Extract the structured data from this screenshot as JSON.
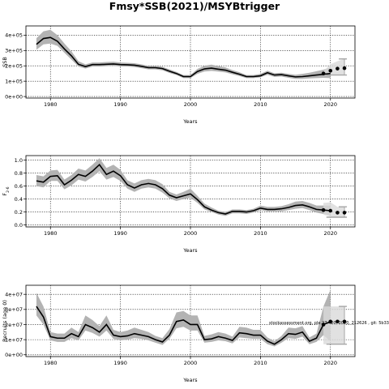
{
  "figure": {
    "title": "Fmsy*SSB(2021)/MSYBtrigger",
    "annotation": "stockassessment.org, ple.27.420, 2020, 212626 , git: 5b33"
  },
  "colors": {
    "band": "#b3b3b3",
    "line": "#000000",
    "point": "#000000",
    "proj_band": "#d9d9d9",
    "proj_line": "#a6a6a6"
  },
  "chart_data": [
    {
      "type": "line",
      "title": "",
      "xlabel": "Years",
      "ylabel": "SSB",
      "xlim": [
        1976.5,
        2023.5
      ],
      "ylim": [
        -10000,
        460000
      ],
      "xticks": [
        1980,
        1990,
        2000,
        2010,
        2020
      ],
      "yticks": [
        0,
        100000,
        200000,
        300000,
        400000
      ],
      "yticklabels": [
        "0e+00",
        "1e+05",
        "2e+05",
        "3e+05",
        "4e+05"
      ],
      "grid": true,
      "series": [
        {
          "x": [
            1978,
            1979,
            1980,
            1981,
            1982,
            1983,
            1984,
            1985,
            1986,
            1987,
            1988,
            1989,
            1990,
            1991,
            1992,
            1993,
            1994,
            1995,
            1996,
            1997,
            1998,
            1999,
            2000,
            2001,
            2002,
            2003,
            2004,
            2005,
            2006,
            2007,
            2008,
            2009,
            2010,
            2011,
            2012,
            2013,
            2014,
            2015,
            2016,
            2017,
            2018,
            2019,
            2020
          ],
          "y": [
            340000,
            378000,
            385000,
            360000,
            310000,
            265000,
            210000,
            195000,
            208000,
            208000,
            210000,
            212000,
            208000,
            207000,
            204000,
            197000,
            188000,
            188000,
            182000,
            165000,
            150000,
            130000,
            130000,
            163000,
            180000,
            185000,
            178000,
            172000,
            158000,
            145000,
            130000,
            130000,
            135000,
            155000,
            140000,
            143000,
            135000,
            128000,
            130000,
            135000,
            140000,
            145000,
            150000
          ],
          "lo": [
            305000,
            340000,
            345000,
            330000,
            285000,
            240000,
            195000,
            182000,
            195000,
            195000,
            198000,
            200000,
            196000,
            195000,
            192000,
            185000,
            177000,
            177000,
            171000,
            154000,
            140000,
            120000,
            120000,
            148000,
            163000,
            167000,
            162000,
            157000,
            145000,
            133000,
            120000,
            120000,
            125000,
            142000,
            128000,
            130000,
            122000,
            115000,
            115000,
            118000,
            120000,
            122000,
            120000
          ],
          "hi": [
            380000,
            425000,
            435000,
            400000,
            345000,
            295000,
            230000,
            210000,
            222000,
            222000,
            225000,
            227000,
            222000,
            220000,
            217000,
            210000,
            200000,
            200000,
            194000,
            177000,
            160000,
            140000,
            140000,
            180000,
            200000,
            208000,
            198000,
            190000,
            172000,
            158000,
            140000,
            140000,
            148000,
            168000,
            152000,
            155000,
            148000,
            142000,
            148000,
            155000,
            165000,
            175000,
            190000
          ]
        }
      ],
      "points": {
        "x": [
          2019,
          2020,
          2021,
          2022
        ],
        "y": [
          150000,
          168000,
          182000,
          185000
        ]
      },
      "projection": {
        "x": [
          2019,
          2020,
          2021,
          2022
        ],
        "lo": [
          135000,
          140000,
          140000,
          140000
        ],
        "hi": [
          165000,
          210000,
          230000,
          245000
        ]
      }
    },
    {
      "type": "line",
      "title": "",
      "xlabel": "Years",
      "ylabel": "F2-6",
      "ylabel_main": "F",
      "ylabel_sub": "2-6",
      "xlim": [
        1976.5,
        2023.5
      ],
      "ylim": [
        -0.03,
        1.07
      ],
      "xticks": [
        1980,
        1990,
        2000,
        2010,
        2020
      ],
      "yticks": [
        0,
        0.2,
        0.4,
        0.6,
        0.8,
        1.0
      ],
      "yticklabels": [
        "0.0",
        "0.2",
        "0.4",
        "0.6",
        "0.8",
        "1.0"
      ],
      "grid": true,
      "series": [
        {
          "x": [
            1978,
            1979,
            1980,
            1981,
            1982,
            1983,
            1984,
            1985,
            1986,
            1987,
            1988,
            1989,
            1990,
            1991,
            1992,
            1993,
            1994,
            1995,
            1996,
            1997,
            1998,
            1999,
            2000,
            2001,
            2002,
            2003,
            2004,
            2005,
            2006,
            2007,
            2008,
            2009,
            2010,
            2011,
            2012,
            2013,
            2014,
            2015,
            2016,
            2017,
            2018,
            2019,
            2020
          ],
          "y": [
            0.68,
            0.66,
            0.75,
            0.76,
            0.62,
            0.69,
            0.78,
            0.75,
            0.83,
            0.93,
            0.78,
            0.83,
            0.76,
            0.62,
            0.57,
            0.62,
            0.64,
            0.62,
            0.56,
            0.46,
            0.42,
            0.45,
            0.48,
            0.39,
            0.28,
            0.23,
            0.19,
            0.17,
            0.21,
            0.21,
            0.2,
            0.22,
            0.26,
            0.24,
            0.24,
            0.25,
            0.27,
            0.3,
            0.31,
            0.28,
            0.24,
            0.23,
            0.22
          ],
          "lo": [
            0.6,
            0.58,
            0.68,
            0.68,
            0.55,
            0.61,
            0.7,
            0.67,
            0.74,
            0.83,
            0.7,
            0.74,
            0.68,
            0.56,
            0.51,
            0.56,
            0.58,
            0.56,
            0.5,
            0.41,
            0.37,
            0.4,
            0.42,
            0.34,
            0.24,
            0.2,
            0.16,
            0.14,
            0.18,
            0.18,
            0.17,
            0.19,
            0.23,
            0.21,
            0.21,
            0.21,
            0.23,
            0.25,
            0.26,
            0.23,
            0.19,
            0.17,
            0.15
          ],
          "hi": [
            0.77,
            0.75,
            0.84,
            0.85,
            0.7,
            0.77,
            0.87,
            0.84,
            0.93,
            1.03,
            0.88,
            0.93,
            0.85,
            0.69,
            0.64,
            0.69,
            0.71,
            0.69,
            0.63,
            0.51,
            0.47,
            0.51,
            0.56,
            0.45,
            0.33,
            0.27,
            0.22,
            0.2,
            0.24,
            0.24,
            0.23,
            0.25,
            0.3,
            0.28,
            0.28,
            0.29,
            0.32,
            0.36,
            0.37,
            0.34,
            0.3,
            0.3,
            0.3
          ]
        }
      ],
      "points": {
        "x": [
          2019,
          2020,
          2021,
          2022
        ],
        "y": [
          0.23,
          0.22,
          0.19,
          0.19
        ]
      },
      "projection": {
        "x": [
          2019,
          2020,
          2021,
          2022
        ],
        "lo": [
          0.16,
          0.13,
          0.12,
          0.12
        ],
        "hi": [
          0.34,
          0.35,
          0.28,
          0.28
        ]
      }
    },
    {
      "type": "line",
      "title": "",
      "xlabel": "Years",
      "ylabel": "Recruits (age 0)",
      "xlim": [
        1976.5,
        2023.5
      ],
      "ylim": [
        -1200000,
        46000000
      ],
      "xticks": [
        1980,
        1990,
        2000,
        2010,
        2020
      ],
      "yticks": [
        0,
        10000000,
        20000000,
        30000000,
        40000000
      ],
      "yticklabels": [
        "0e+00",
        "1e+07",
        "2e+07",
        "3e+07",
        "4e+07"
      ],
      "grid": true,
      "series": [
        {
          "x": [
            1978,
            1979,
            1980,
            1981,
            1982,
            1983,
            1984,
            1985,
            1986,
            1987,
            1988,
            1989,
            1990,
            1991,
            1992,
            1993,
            1994,
            1995,
            1996,
            1997,
            1998,
            1999,
            2000,
            2001,
            2002,
            2003,
            2004,
            2005,
            2006,
            2007,
            2008,
            2009,
            2010,
            2011,
            2012,
            2013,
            2014,
            2015,
            2016,
            2017,
            2018,
            2019,
            2020
          ],
          "y": [
            32000000,
            25000000,
            12000000,
            11000000,
            11000000,
            14000000,
            12000000,
            20000000,
            18000000,
            15000000,
            20000000,
            13000000,
            12000000,
            12500000,
            14000000,
            13000000,
            12000000,
            10000000,
            8500000,
            13000000,
            22000000,
            23000000,
            20000000,
            20000000,
            10000000,
            10500000,
            12000000,
            11000000,
            9500000,
            14500000,
            14000000,
            13000000,
            13000000,
            9000000,
            7000000,
            10000000,
            14000000,
            13500000,
            15000000,
            9000000,
            11000000,
            20000000,
            22000000
          ],
          "lo": [
            26000000,
            20000000,
            9500000,
            8500000,
            8500000,
            11000000,
            9500000,
            16000000,
            14500000,
            12000000,
            16000000,
            10500000,
            9500000,
            10000000,
            11000000,
            10500000,
            9500000,
            8000000,
            6500000,
            10500000,
            17500000,
            18500000,
            16000000,
            16000000,
            8000000,
            8500000,
            9500000,
            9000000,
            7500000,
            11500000,
            11000000,
            10500000,
            10500000,
            7000000,
            5500000,
            8000000,
            11000000,
            10500000,
            12000000,
            7000000,
            8500000,
            13000000,
            9000000
          ],
          "hi": [
            41000000,
            32000000,
            15000000,
            14000000,
            14000000,
            18000000,
            15000000,
            26000000,
            23000000,
            19000000,
            26000000,
            16500000,
            15000000,
            16000000,
            18000000,
            16500000,
            15000000,
            12500000,
            11000000,
            17000000,
            28000000,
            29000000,
            26000000,
            26000000,
            12500000,
            13500000,
            15000000,
            14000000,
            12000000,
            18500000,
            18000000,
            16500000,
            16500000,
            11500000,
            9000000,
            12500000,
            18000000,
            17500000,
            19000000,
            11500000,
            14000000,
            32000000,
            43000000
          ]
        }
      ],
      "points": {
        "x": [
          2019,
          2020,
          2021,
          2022
        ],
        "y": [
          20000000,
          22000000,
          22000000,
          22000000
        ]
      },
      "projection": {
        "x": [
          2019,
          2020,
          2021,
          2022
        ],
        "lo": [
          7000000,
          7000000,
          7000000,
          7000000
        ],
        "hi": [
          32000000,
          32000000,
          32000000,
          32000000
        ]
      }
    }
  ]
}
